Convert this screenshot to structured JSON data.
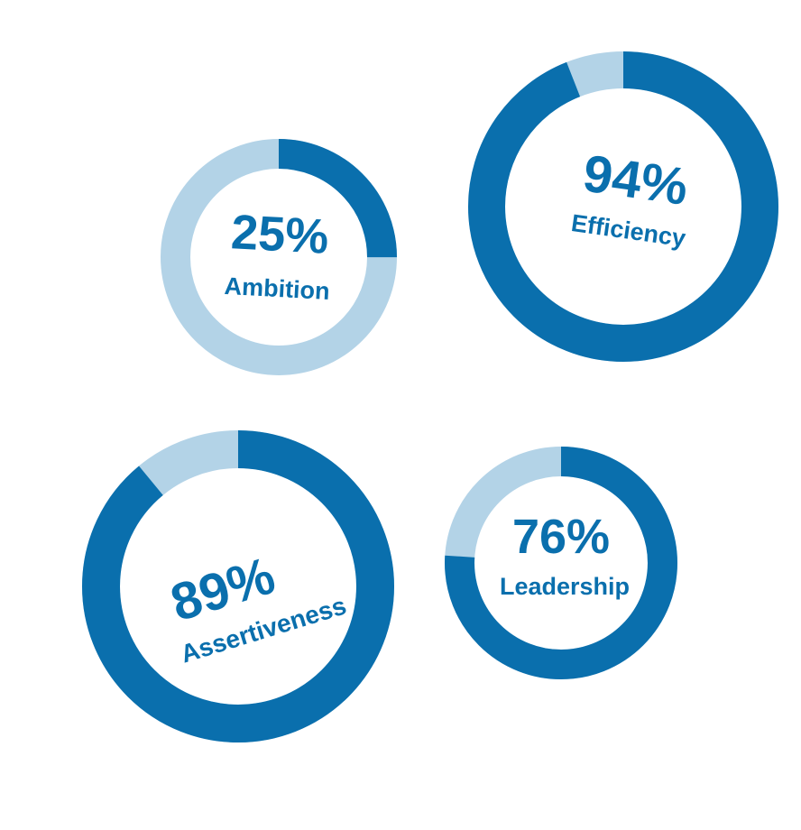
{
  "colors": {
    "filled": "#0a6fad",
    "remaining": "#b3d3e7",
    "text": "#0a6fad",
    "background": "#ffffff"
  },
  "chart_data": [
    {
      "type": "pie",
      "variant": "donut",
      "value": 25,
      "value_text": "25%",
      "label": "Ambition"
    },
    {
      "type": "pie",
      "variant": "donut",
      "value": 94,
      "value_text": "94%",
      "label": "Efficiency"
    },
    {
      "type": "pie",
      "variant": "donut",
      "value": 89,
      "value_text": "89%",
      "label": "Assertiveness"
    },
    {
      "type": "pie",
      "variant": "donut",
      "value": 76,
      "value_text": "76%",
      "label": "Leadership"
    }
  ]
}
